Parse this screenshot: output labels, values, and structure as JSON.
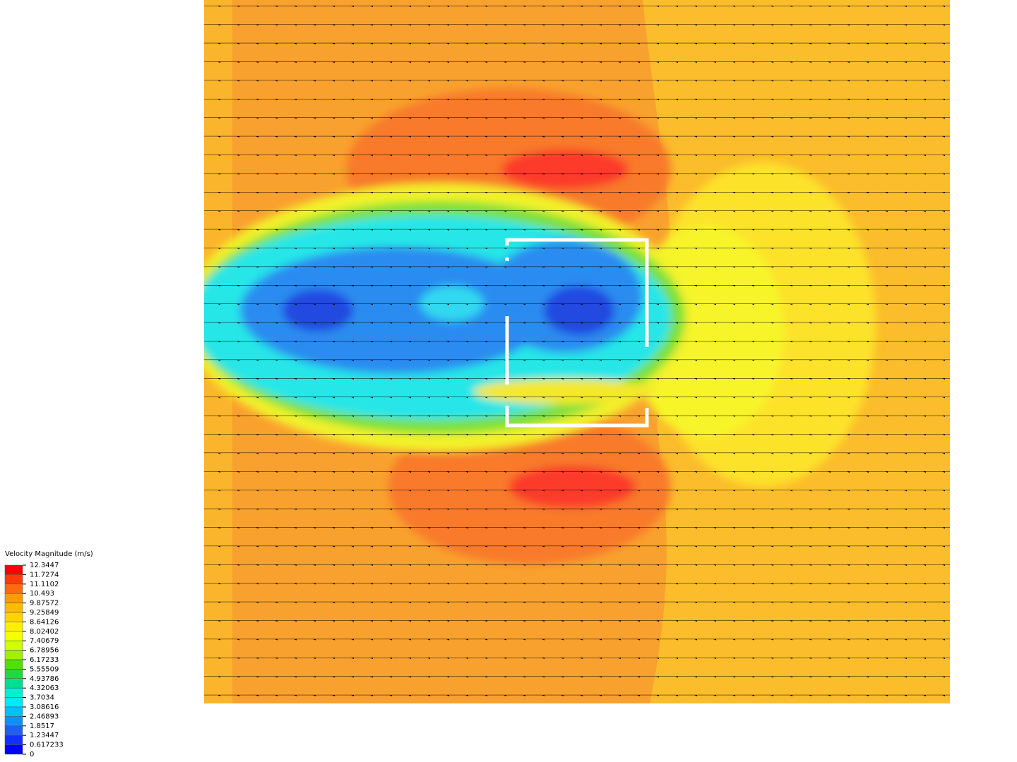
{
  "legend": {
    "title": "Velocity Magnitude (m/s)",
    "labels": [
      "12.3447",
      "11.7274",
      "11.1102",
      "10.493",
      "9.87572",
      "9.25849",
      "8.64126",
      "8.02402",
      "7.40679",
      "6.78956",
      "6.17233",
      "5.55509",
      "4.93786",
      "4.32063",
      "3.7034",
      "3.08616",
      "2.46893",
      "1.8517",
      "1.23447",
      "0.617233",
      "0"
    ],
    "colors": [
      "#ff0000",
      "#ff3a0a",
      "#ff6a10",
      "#ff9a00",
      "#ffbb00",
      "#ffd400",
      "#ffee00",
      "#f4ff00",
      "#d0ff00",
      "#a0f000",
      "#50e000",
      "#20d840",
      "#00e090",
      "#00f0d0",
      "#00e8ff",
      "#00c0ff",
      "#1090ff",
      "#2060f0",
      "#1030ff",
      "#0000ff"
    ]
  }
}
